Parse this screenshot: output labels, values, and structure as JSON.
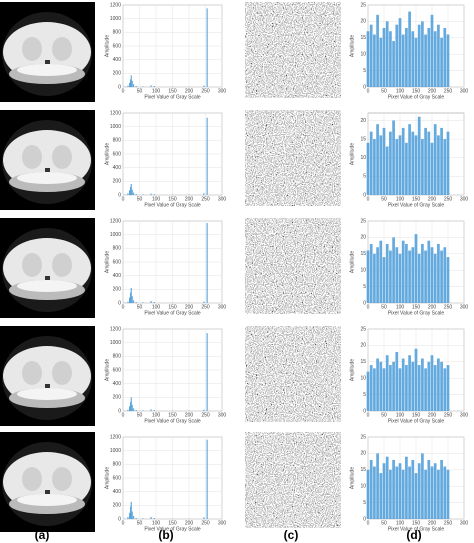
{
  "panel_labels": [
    "(a)",
    "(b)",
    "(c)",
    "(d)"
  ],
  "chart_data": [
    {
      "type": "bar",
      "xlabel": "Pixel Value of Gray Scale",
      "ylabel": "Amplitude",
      "color": "#4a9bd8",
      "xlim": [
        0,
        300
      ],
      "ylim": [
        0,
        1200
      ],
      "xticks": [
        0,
        50,
        100,
        150,
        200,
        250,
        300
      ],
      "yticks": [
        0,
        200,
        400,
        600,
        800,
        1000,
        1200
      ],
      "grid": true,
      "x": [
        5,
        15,
        20,
        23,
        25,
        28,
        32,
        40,
        60,
        85,
        95,
        150,
        200,
        245,
        255
      ],
      "values": [
        5,
        20,
        60,
        110,
        170,
        90,
        40,
        15,
        8,
        25,
        15,
        5,
        5,
        20,
        1150
      ]
    },
    {
      "type": "bar",
      "xlabel": "Pixel Value of Gray Scale",
      "ylabel": "Amplitude",
      "color": "#4a9bd8",
      "xlim": [
        0,
        300
      ],
      "ylim": [
        0,
        25
      ],
      "xticks": [
        0,
        50,
        100,
        150,
        200,
        250,
        300
      ],
      "yticks": [
        0,
        5,
        10,
        15,
        20,
        25
      ],
      "grid": true,
      "x": [
        0,
        10,
        20,
        30,
        40,
        50,
        60,
        70,
        80,
        90,
        100,
        110,
        120,
        130,
        140,
        150,
        160,
        170,
        180,
        190,
        200,
        210,
        220,
        230,
        240,
        250
      ],
      "values": [
        17,
        19,
        16,
        22,
        15,
        18,
        20,
        17,
        14,
        19,
        21,
        16,
        18,
        23,
        17,
        15,
        19,
        20,
        16,
        18,
        22,
        17,
        19,
        15,
        18,
        16
      ]
    },
    {
      "type": "bar",
      "xlabel": "Pixel Value of Gray Scale",
      "ylabel": "Amplitude",
      "color": "#4a9bd8",
      "xlim": [
        0,
        300
      ],
      "ylim": [
        0,
        1200
      ],
      "xticks": [
        0,
        50,
        100,
        150,
        200,
        250,
        300
      ],
      "yticks": [
        0,
        200,
        400,
        600,
        800,
        1000,
        1200
      ],
      "grid": true,
      "x": [
        5,
        15,
        20,
        23,
        25,
        28,
        32,
        40,
        60,
        85,
        95,
        150,
        200,
        245,
        255
      ],
      "values": [
        5,
        25,
        70,
        120,
        160,
        80,
        35,
        12,
        8,
        20,
        12,
        5,
        5,
        25,
        1130
      ]
    },
    {
      "type": "bar",
      "xlabel": "Pixel Value of Gray Scale",
      "ylabel": "Amplitude",
      "color": "#4a9bd8",
      "xlim": [
        0,
        300
      ],
      "ylim": [
        0,
        22
      ],
      "xticks": [
        0,
        50,
        100,
        150,
        200,
        250,
        300
      ],
      "yticks": [
        0,
        5,
        10,
        15,
        20
      ],
      "grid": true,
      "x": [
        0,
        10,
        20,
        30,
        40,
        50,
        60,
        70,
        80,
        90,
        100,
        110,
        120,
        130,
        140,
        150,
        160,
        170,
        180,
        190,
        200,
        210,
        220,
        230,
        240,
        250
      ],
      "values": [
        14,
        17,
        15,
        19,
        16,
        18,
        13,
        17,
        20,
        15,
        16,
        18,
        14,
        19,
        17,
        16,
        21,
        15,
        18,
        17,
        14,
        19,
        16,
        18,
        15,
        17
      ]
    },
    {
      "type": "bar",
      "xlabel": "Pixel Value of Gray Scale",
      "ylabel": "Amplitude",
      "color": "#4a9bd8",
      "xlim": [
        0,
        300
      ],
      "ylim": [
        0,
        1200
      ],
      "xticks": [
        0,
        50,
        100,
        150,
        200,
        250,
        300
      ],
      "yticks": [
        0,
        200,
        400,
        600,
        800,
        1000,
        1200
      ],
      "grid": true,
      "x": [
        5,
        15,
        20,
        23,
        25,
        28,
        32,
        40,
        60,
        85,
        95,
        150,
        200,
        245,
        255
      ],
      "values": [
        5,
        20,
        80,
        150,
        220,
        100,
        40,
        15,
        10,
        30,
        15,
        5,
        5,
        20,
        1170
      ]
    },
    {
      "type": "bar",
      "xlabel": "Pixel Value of Gray Scale",
      "ylabel": "Amplitude",
      "color": "#4a9bd8",
      "xlim": [
        0,
        300
      ],
      "ylim": [
        0,
        25
      ],
      "xticks": [
        0,
        50,
        100,
        150,
        200,
        250,
        300
      ],
      "yticks": [
        0,
        5,
        10,
        15,
        20,
        25
      ],
      "grid": true,
      "x": [
        0,
        10,
        20,
        30,
        40,
        50,
        60,
        70,
        80,
        90,
        100,
        110,
        120,
        130,
        140,
        150,
        160,
        170,
        180,
        190,
        200,
        210,
        220,
        230,
        240,
        250
      ],
      "values": [
        16,
        18,
        15,
        17,
        19,
        14,
        18,
        16,
        20,
        17,
        15,
        19,
        18,
        16,
        17,
        21,
        15,
        18,
        16,
        19,
        17,
        15,
        18,
        16,
        17,
        14
      ]
    },
    {
      "type": "bar",
      "xlabel": "Pixel Value of Gray Scale",
      "ylabel": "Amplitude",
      "color": "#4a9bd8",
      "xlim": [
        0,
        300
      ],
      "ylim": [
        0,
        1200
      ],
      "xticks": [
        0,
        50,
        100,
        150,
        200,
        250,
        300
      ],
      "yticks": [
        0,
        200,
        400,
        600,
        800,
        1000,
        1200
      ],
      "grid": true,
      "x": [
        5,
        15,
        20,
        23,
        25,
        28,
        32,
        40,
        60,
        85,
        95,
        150,
        200,
        245,
        255
      ],
      "values": [
        5,
        20,
        70,
        130,
        200,
        90,
        40,
        15,
        8,
        25,
        15,
        5,
        5,
        20,
        1140
      ]
    },
    {
      "type": "bar",
      "xlabel": "Pixel Value of Gray Scale",
      "ylabel": "Amplitude",
      "color": "#4a9bd8",
      "xlim": [
        0,
        300
      ],
      "ylim": [
        0,
        25
      ],
      "xticks": [
        0,
        50,
        100,
        150,
        200,
        250,
        300
      ],
      "yticks": [
        0,
        5,
        10,
        15,
        20,
        25
      ],
      "grid": true,
      "x": [
        0,
        10,
        20,
        30,
        40,
        50,
        60,
        70,
        80,
        90,
        100,
        110,
        120,
        130,
        140,
        150,
        160,
        170,
        180,
        190,
        200,
        210,
        220,
        230,
        240,
        250
      ],
      "values": [
        12,
        14,
        13,
        16,
        15,
        13,
        17,
        14,
        15,
        18,
        13,
        16,
        14,
        17,
        15,
        19,
        14,
        16,
        13,
        15,
        17,
        14,
        16,
        15,
        13,
        14
      ]
    },
    {
      "type": "bar",
      "xlabel": "Pixel Value of Gray Scale",
      "ylabel": "Amplitude",
      "color": "#4a9bd8",
      "xlim": [
        0,
        300
      ],
      "ylim": [
        0,
        1200
      ],
      "xticks": [
        0,
        50,
        100,
        150,
        200,
        250,
        300
      ],
      "yticks": [
        0,
        200,
        400,
        600,
        800,
        1000,
        1200
      ],
      "grid": true,
      "x": [
        5,
        15,
        20,
        23,
        25,
        28,
        32,
        40,
        60,
        85,
        95,
        150,
        200,
        245,
        255
      ],
      "values": [
        5,
        30,
        90,
        180,
        250,
        110,
        45,
        15,
        10,
        30,
        15,
        5,
        5,
        25,
        1160
      ]
    },
    {
      "type": "bar",
      "xlabel": "Pixel Value of Gray Scale",
      "ylabel": "Amplitude",
      "color": "#4a9bd8",
      "xlim": [
        0,
        300
      ],
      "ylim": [
        0,
        25
      ],
      "xticks": [
        0,
        50,
        100,
        150,
        200,
        250,
        300
      ],
      "yticks": [
        0,
        5,
        10,
        15,
        20,
        25
      ],
      "grid": true,
      "x": [
        0,
        10,
        20,
        30,
        40,
        50,
        60,
        70,
        80,
        90,
        100,
        110,
        120,
        130,
        140,
        150,
        160,
        170,
        180,
        190,
        200,
        210,
        220,
        230,
        240,
        250
      ],
      "values": [
        15,
        18,
        16,
        20,
        14,
        17,
        19,
        15,
        18,
        16,
        17,
        15,
        19,
        16,
        18,
        14,
        17,
        20,
        15,
        18,
        16,
        17,
        15,
        18,
        16,
        15
      ]
    }
  ]
}
